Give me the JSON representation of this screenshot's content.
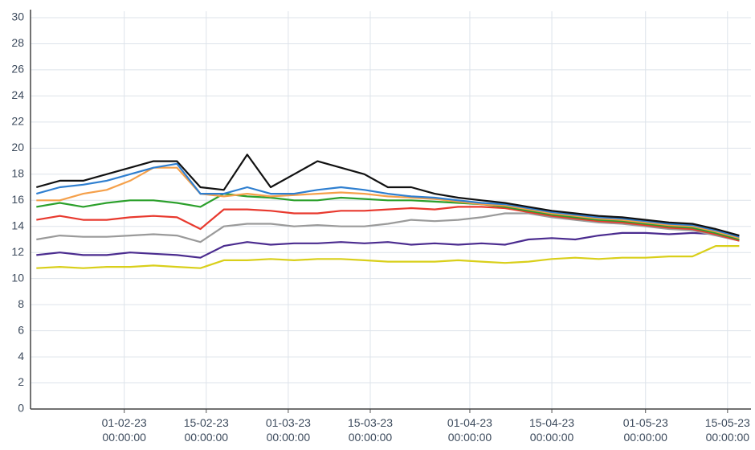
{
  "chart_data": {
    "type": "line",
    "x": [
      "17-01-23 00:00:00",
      "21-01-23 00:00:00",
      "25-01-23 00:00:00",
      "29-01-23 00:00:00",
      "02-02-23 00:00:00",
      "06-02-23 00:00:00",
      "10-02-23 00:00:00",
      "14-02-23 00:00:00",
      "18-02-23 00:00:00",
      "22-02-23 00:00:00",
      "26-02-23 00:00:00",
      "02-03-23 00:00:00",
      "06-03-23 00:00:00",
      "10-03-23 00:00:00",
      "14-03-23 00:00:00",
      "18-03-23 00:00:00",
      "22-03-23 00:00:00",
      "26-03-23 00:00:00",
      "30-03-23 00:00:00",
      "03-04-23 00:00:00",
      "07-04-23 00:00:00",
      "11-04-23 00:00:00",
      "15-04-23 00:00:00",
      "19-04-23 00:00:00",
      "23-04-23 00:00:00",
      "27-04-23 00:00:00",
      "01-05-23 00:00:00",
      "05-05-23 00:00:00",
      "09-05-23 00:00:00",
      "13-05-23 00:00:00",
      "17-05-23 00:00:00"
    ],
    "series": [
      {
        "color": "#111111",
        "values": [
          17,
          17.5,
          17.5,
          18,
          18.5,
          19,
          19,
          17,
          16.8,
          19.5,
          17,
          18,
          19,
          18.5,
          18,
          17,
          17,
          16.5,
          16.2,
          16,
          15.8,
          15.5,
          15.2,
          15,
          14.8,
          14.7,
          14.5,
          14.3,
          14.2,
          13.8,
          13.3
        ]
      },
      {
        "color": "#2f7fd0",
        "values": [
          16.5,
          17,
          17.2,
          17.5,
          18,
          18.5,
          18.8,
          16.5,
          16.5,
          17,
          16.5,
          16.5,
          16.8,
          17,
          16.8,
          16.5,
          16.3,
          16.2,
          16,
          15.8,
          15.7,
          15.4,
          15.1,
          14.9,
          14.7,
          14.6,
          14.4,
          14.2,
          14.1,
          13.7,
          13.2
        ]
      },
      {
        "color": "#f5a04a",
        "values": [
          16,
          16,
          16.5,
          16.8,
          17.5,
          18.5,
          18.5,
          16.5,
          16.3,
          16.5,
          16.3,
          16.4,
          16.5,
          16.6,
          16.5,
          16.3,
          16.2,
          16.1,
          15.9,
          15.7,
          15.6,
          15.3,
          15,
          14.8,
          14.6,
          14.5,
          14.3,
          14.1,
          14,
          13.6,
          13.1
        ]
      },
      {
        "color": "#2ca02c",
        "values": [
          15.5,
          15.8,
          15.5,
          15.8,
          16,
          16,
          15.8,
          15.5,
          16.5,
          16.3,
          16.2,
          16,
          16,
          16.2,
          16.1,
          16,
          16,
          15.9,
          15.8,
          15.7,
          15.5,
          15.2,
          14.9,
          14.7,
          14.5,
          14.4,
          14.2,
          14,
          13.9,
          13.5,
          13
        ]
      },
      {
        "color": "#e8392e",
        "values": [
          14.5,
          14.8,
          14.5,
          14.5,
          14.7,
          14.8,
          14.7,
          13.8,
          15.3,
          15.3,
          15.2,
          15,
          15,
          15.2,
          15.2,
          15.3,
          15.4,
          15.3,
          15.5,
          15.5,
          15.4,
          15.1,
          14.8,
          14.6,
          14.4,
          14.3,
          14.1,
          13.9,
          13.8,
          13.4,
          12.9
        ]
      },
      {
        "color": "#9a9a9a",
        "values": [
          13,
          13.3,
          13.2,
          13.2,
          13.3,
          13.4,
          13.3,
          12.8,
          14,
          14.2,
          14.2,
          14,
          14.1,
          14,
          14,
          14.2,
          14.5,
          14.4,
          14.5,
          14.7,
          15,
          15,
          14.7,
          14.5,
          14.3,
          14.2,
          14,
          13.8,
          13.7,
          13.3,
          12.9
        ]
      },
      {
        "color": "#4b2c8f",
        "values": [
          11.8,
          12,
          11.8,
          11.8,
          12,
          11.9,
          11.8,
          11.6,
          12.5,
          12.8,
          12.6,
          12.7,
          12.7,
          12.8,
          12.7,
          12.8,
          12.6,
          12.7,
          12.6,
          12.7,
          12.6,
          13,
          13.1,
          13,
          13.3,
          13.5,
          13.5,
          13.4,
          13.5,
          13.4,
          12.9
        ]
      },
      {
        "color": "#d9cf1a",
        "values": [
          10.8,
          10.9,
          10.8,
          10.9,
          10.9,
          11,
          10.9,
          10.8,
          11.4,
          11.4,
          11.5,
          11.4,
          11.5,
          11.5,
          11.4,
          11.3,
          11.3,
          11.3,
          11.4,
          11.3,
          11.2,
          11.3,
          11.5,
          11.6,
          11.5,
          11.6,
          11.6,
          11.7,
          11.7,
          12.5,
          12.5
        ]
      }
    ],
    "xlim": [
      "16-01-23 00:00:00",
      "19-05-23 00:00:00"
    ],
    "xticks": [
      "01-02-23 00:00:00",
      "15-02-23 00:00:00",
      "01-03-23 00:00:00",
      "15-03-23 00:00:00",
      "01-04-23 00:00:00",
      "15-04-23 00:00:00",
      "01-05-23 00:00:00",
      "15-05-23 00:00:00"
    ],
    "ylim": [
      0,
      30
    ],
    "yticks": [
      0,
      2,
      4,
      6,
      8,
      10,
      12,
      14,
      16,
      18,
      20,
      22,
      24,
      26,
      28,
      30
    ],
    "grid": true
  }
}
